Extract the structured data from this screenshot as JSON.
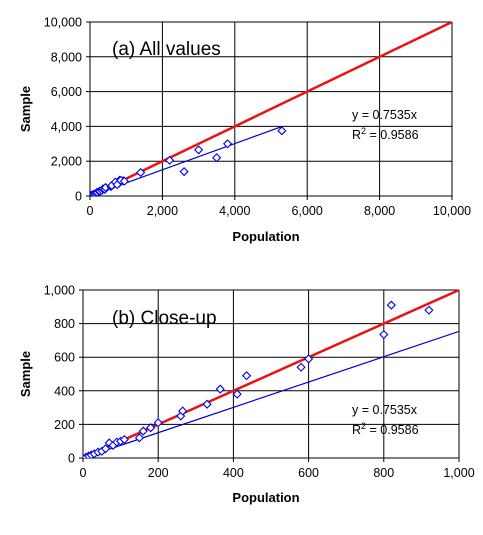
{
  "chart_data": [
    {
      "type": "scatter",
      "panel_label": "(a) All values",
      "xlabel": "Population",
      "ylabel": "Sample",
      "xlim": [
        0,
        10000
      ],
      "ylim": [
        0,
        10000
      ],
      "x_ticks": [
        0,
        2000,
        4000,
        6000,
        8000,
        10000
      ],
      "y_ticks": [
        0,
        2000,
        4000,
        6000,
        8000,
        10000
      ],
      "x_tick_labels": [
        "0",
        "2,000",
        "4,000",
        "6,000",
        "8,000",
        "10,000"
      ],
      "y_tick_labels": [
        "0",
        "2,000",
        "4,000",
        "6,000",
        "8,000",
        "10,000"
      ],
      "grid": true,
      "annotation_eq": "y = 0.7535x",
      "annotation_r2_prefix": "R",
      "annotation_r2_sup": "2",
      "annotation_r2_value": " = 0.9586",
      "series": [
        {
          "marker": "diamond",
          "color": "#0000ee",
          "points": [
            [
              10,
              8
            ],
            [
              20,
              15
            ],
            [
              30,
              25
            ],
            [
              40,
              30
            ],
            [
              50,
              40
            ],
            [
              70,
              55
            ],
            [
              90,
              70
            ],
            [
              110,
              110
            ],
            [
              150,
              120
            ],
            [
              180,
              180
            ],
            [
              200,
              210
            ],
            [
              260,
              250
            ],
            [
              270,
              280
            ],
            [
              330,
              320
            ],
            [
              360,
              410
            ],
            [
              410,
              380
            ],
            [
              430,
              490
            ],
            [
              580,
              540
            ],
            [
              600,
              590
            ],
            [
              800,
              730
            ],
            [
              820,
              910
            ],
            [
              920,
              880
            ],
            [
              1400,
              1350
            ],
            [
              2200,
              2050
            ],
            [
              2600,
              1400
            ],
            [
              3000,
              2650
            ],
            [
              3500,
              2200
            ],
            [
              3800,
              3000
            ],
            [
              5300,
              3750
            ],
            [
              600,
              600
            ],
            [
              700,
              800
            ],
            [
              750,
              650
            ],
            [
              850,
              900
            ],
            [
              950,
              850
            ]
          ]
        }
      ],
      "lines": [
        {
          "label": "regression",
          "slope": 0.7535,
          "color": "#0000cc",
          "width": 1.2,
          "x_range": [
            0,
            5300
          ]
        },
        {
          "label": "1:1",
          "slope": 1,
          "color": "#ee1111",
          "width": 2.5,
          "x_range": [
            0,
            10000
          ]
        }
      ]
    },
    {
      "type": "scatter",
      "panel_label": "(b) Close-up",
      "xlabel": "Population",
      "ylabel": "Sample",
      "xlim": [
        0,
        1000
      ],
      "ylim": [
        0,
        1000
      ],
      "x_ticks": [
        0,
        200,
        400,
        600,
        800,
        1000
      ],
      "y_ticks": [
        0,
        200,
        400,
        600,
        800,
        1000
      ],
      "x_tick_labels": [
        "0",
        "200",
        "400",
        "600",
        "800",
        "1,000"
      ],
      "y_tick_labels": [
        "0",
        "200",
        "400",
        "600",
        "800",
        "1,000"
      ],
      "grid": true,
      "annotation_eq": "y = 0.7535x",
      "annotation_r2_prefix": "R",
      "annotation_r2_sup": "2",
      "annotation_r2_value": " = 0.9586",
      "series": [
        {
          "marker": "diamond",
          "color": "#0000ee",
          "points": [
            [
              8,
              5
            ],
            [
              15,
              12
            ],
            [
              22,
              18
            ],
            [
              30,
              25
            ],
            [
              40,
              35
            ],
            [
              50,
              40
            ],
            [
              60,
              55
            ],
            [
              70,
              90
            ],
            [
              80,
              75
            ],
            [
              90,
              95
            ],
            [
              100,
              100
            ],
            [
              110,
              110
            ],
            [
              150,
              120
            ],
            [
              160,
              160
            ],
            [
              180,
              180
            ],
            [
              200,
              210
            ],
            [
              260,
              250
            ],
            [
              265,
              280
            ],
            [
              330,
              320
            ],
            [
              365,
              410
            ],
            [
              410,
              380
            ],
            [
              435,
              490
            ],
            [
              580,
              540
            ],
            [
              600,
              590
            ],
            [
              800,
              735
            ],
            [
              820,
              910
            ],
            [
              920,
              880
            ]
          ]
        }
      ],
      "lines": [
        {
          "label": "regression",
          "slope": 0.7535,
          "color": "#0000cc",
          "width": 1.2,
          "x_range": [
            0,
            1000
          ]
        },
        {
          "label": "1:1",
          "slope": 1,
          "color": "#ee1111",
          "width": 2.5,
          "x_range": [
            0,
            1000
          ]
        }
      ]
    }
  ]
}
